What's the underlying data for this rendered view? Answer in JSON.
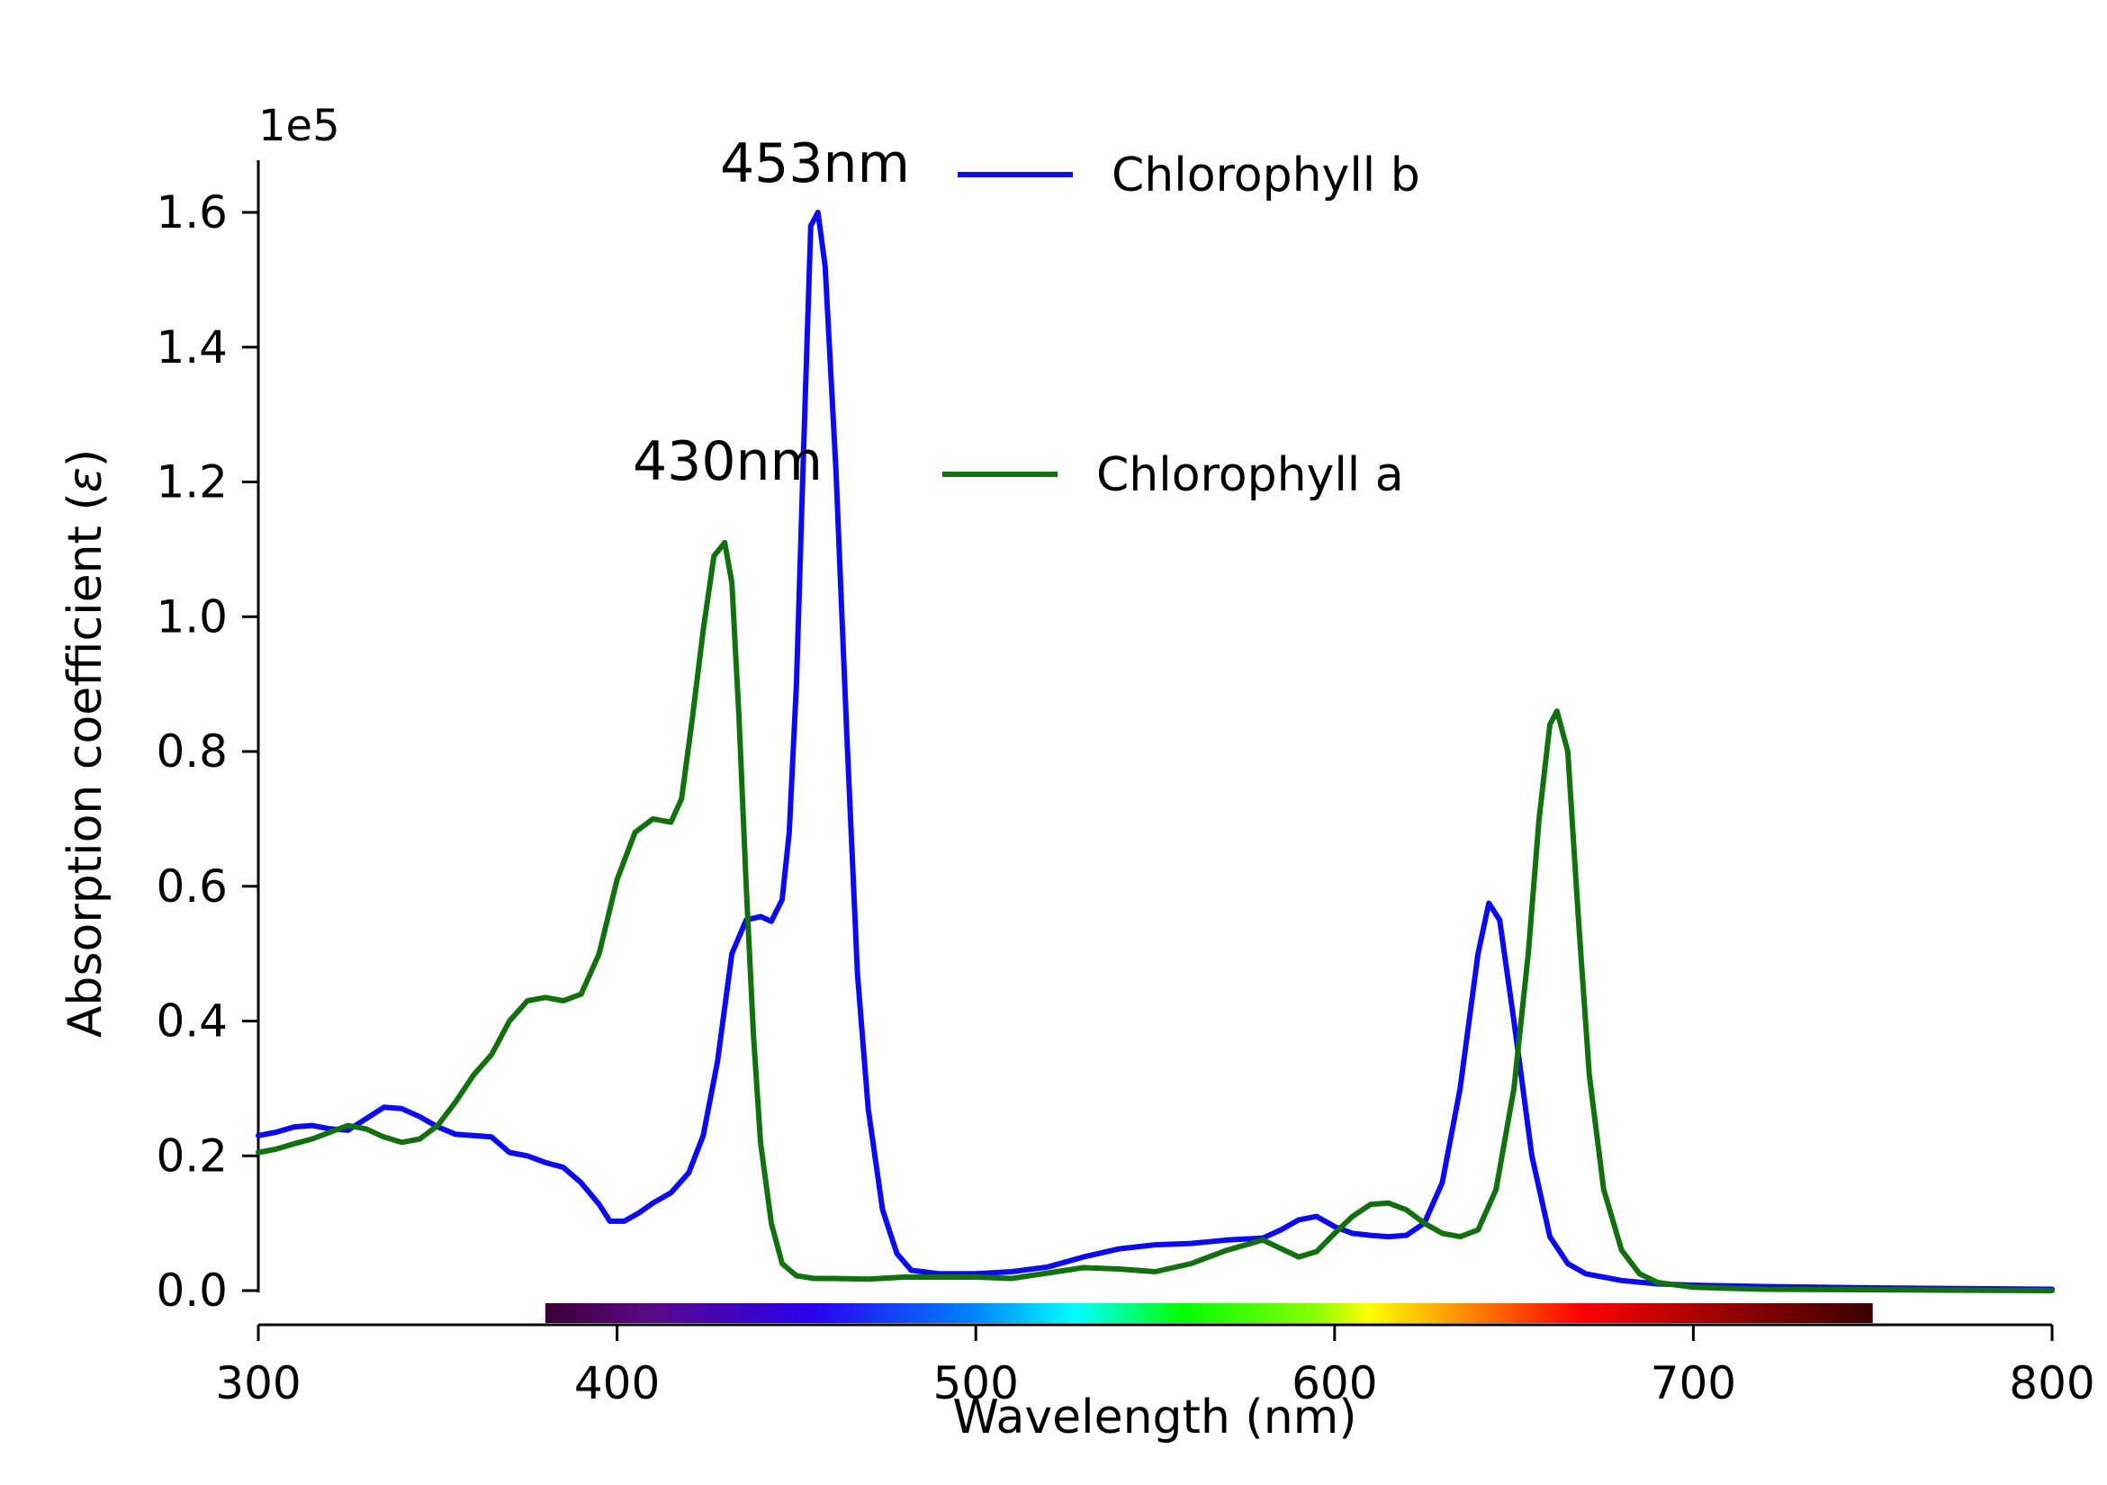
{
  "chart_data": {
    "type": "line",
    "title": "",
    "xlabel": "Wavelength (nm)",
    "ylabel": "Absorption coefficient (ε)",
    "ylabel_prefix": "Absorption coefficient (",
    "ylabel_symbol": "ε",
    "ylabel_suffix": ")",
    "y_multiplier_label": "1e5",
    "xlim": [
      300,
      800
    ],
    "ylim": [
      0,
      1.68
    ],
    "xticks": [
      300,
      400,
      500,
      600,
      700,
      800
    ],
    "xtick_labels": [
      "300",
      "400",
      "500",
      "600",
      "700",
      "800"
    ],
    "yticks": [
      0.0,
      0.2,
      0.4,
      0.6,
      0.8,
      1.0,
      1.2,
      1.4,
      1.6
    ],
    "ytick_labels": [
      "0.0",
      "0.2",
      "0.4",
      "0.6",
      "0.8",
      "1.0",
      "1.2",
      "1.4",
      "1.6"
    ],
    "grid": false,
    "legend_placement": "top-center",
    "spectrum_bar": {
      "x_range": [
        380,
        750
      ]
    },
    "annotations": [
      {
        "text": "453nm",
        "x": 453,
        "y": 1.6
      },
      {
        "text": "430nm",
        "x": 430,
        "y": 1.12
      }
    ],
    "series": [
      {
        "name": "Chlorophyll b",
        "color": "#0b0bee",
        "points": [
          [
            300,
            0.23
          ],
          [
            305,
            0.235
          ],
          [
            310,
            0.243
          ],
          [
            315,
            0.245
          ],
          [
            320,
            0.24
          ],
          [
            325,
            0.238
          ],
          [
            330,
            0.255
          ],
          [
            335,
            0.272
          ],
          [
            340,
            0.27
          ],
          [
            345,
            0.258
          ],
          [
            350,
            0.243
          ],
          [
            355,
            0.232
          ],
          [
            360,
            0.23
          ],
          [
            365,
            0.228
          ],
          [
            370,
            0.205
          ],
          [
            375,
            0.2
          ],
          [
            380,
            0.19
          ],
          [
            385,
            0.183
          ],
          [
            390,
            0.16
          ],
          [
            395,
            0.128
          ],
          [
            398,
            0.103
          ],
          [
            402,
            0.103
          ],
          [
            406,
            0.115
          ],
          [
            410,
            0.13
          ],
          [
            415,
            0.145
          ],
          [
            420,
            0.175
          ],
          [
            424,
            0.23
          ],
          [
            428,
            0.34
          ],
          [
            432,
            0.5
          ],
          [
            436,
            0.55
          ],
          [
            440,
            0.555
          ],
          [
            443,
            0.548
          ],
          [
            446,
            0.58
          ],
          [
            448,
            0.68
          ],
          [
            450,
            0.9
          ],
          [
            452,
            1.25
          ],
          [
            454,
            1.58
          ],
          [
            456,
            1.6
          ],
          [
            458,
            1.52
          ],
          [
            461,
            1.22
          ],
          [
            464,
            0.83
          ],
          [
            467,
            0.47
          ],
          [
            470,
            0.27
          ],
          [
            474,
            0.12
          ],
          [
            478,
            0.055
          ],
          [
            482,
            0.03
          ],
          [
            490,
            0.025
          ],
          [
            500,
            0.025
          ],
          [
            510,
            0.028
          ],
          [
            520,
            0.035
          ],
          [
            530,
            0.05
          ],
          [
            540,
            0.062
          ],
          [
            550,
            0.068
          ],
          [
            560,
            0.07
          ],
          [
            570,
            0.075
          ],
          [
            580,
            0.078
          ],
          [
            585,
            0.09
          ],
          [
            590,
            0.105
          ],
          [
            595,
            0.11
          ],
          [
            600,
            0.095
          ],
          [
            605,
            0.085
          ],
          [
            610,
            0.082
          ],
          [
            615,
            0.08
          ],
          [
            620,
            0.082
          ],
          [
            625,
            0.1
          ],
          [
            630,
            0.16
          ],
          [
            635,
            0.3
          ],
          [
            640,
            0.5
          ],
          [
            643,
            0.575
          ],
          [
            646,
            0.55
          ],
          [
            650,
            0.4
          ],
          [
            655,
            0.2
          ],
          [
            660,
            0.08
          ],
          [
            665,
            0.04
          ],
          [
            670,
            0.025
          ],
          [
            680,
            0.015
          ],
          [
            690,
            0.01
          ],
          [
            700,
            0.008
          ],
          [
            720,
            0.006
          ],
          [
            750,
            0.004
          ],
          [
            800,
            0.002
          ]
        ]
      },
      {
        "name": "Chlorophyll a",
        "color": "#12700f",
        "points": [
          [
            300,
            0.205
          ],
          [
            305,
            0.21
          ],
          [
            310,
            0.218
          ],
          [
            315,
            0.225
          ],
          [
            320,
            0.235
          ],
          [
            325,
            0.245
          ],
          [
            330,
            0.24
          ],
          [
            335,
            0.228
          ],
          [
            340,
            0.22
          ],
          [
            345,
            0.225
          ],
          [
            350,
            0.245
          ],
          [
            355,
            0.28
          ],
          [
            360,
            0.32
          ],
          [
            365,
            0.35
          ],
          [
            370,
            0.4
          ],
          [
            375,
            0.43
          ],
          [
            380,
            0.435
          ],
          [
            385,
            0.43
          ],
          [
            390,
            0.44
          ],
          [
            395,
            0.5
          ],
          [
            400,
            0.61
          ],
          [
            405,
            0.68
          ],
          [
            410,
            0.7
          ],
          [
            415,
            0.695
          ],
          [
            418,
            0.73
          ],
          [
            421,
            0.85
          ],
          [
            424,
            0.98
          ],
          [
            427,
            1.09
          ],
          [
            430,
            1.11
          ],
          [
            432,
            1.05
          ],
          [
            434,
            0.85
          ],
          [
            436,
            0.6
          ],
          [
            438,
            0.38
          ],
          [
            440,
            0.22
          ],
          [
            443,
            0.1
          ],
          [
            446,
            0.04
          ],
          [
            450,
            0.022
          ],
          [
            455,
            0.018
          ],
          [
            460,
            0.018
          ],
          [
            470,
            0.017
          ],
          [
            480,
            0.02
          ],
          [
            490,
            0.02
          ],
          [
            500,
            0.02
          ],
          [
            510,
            0.018
          ],
          [
            520,
            0.026
          ],
          [
            530,
            0.034
          ],
          [
            540,
            0.032
          ],
          [
            550,
            0.028
          ],
          [
            560,
            0.04
          ],
          [
            570,
            0.06
          ],
          [
            580,
            0.075
          ],
          [
            590,
            0.05
          ],
          [
            595,
            0.058
          ],
          [
            600,
            0.085
          ],
          [
            605,
            0.11
          ],
          [
            610,
            0.128
          ],
          [
            615,
            0.13
          ],
          [
            620,
            0.12
          ],
          [
            625,
            0.1
          ],
          [
            630,
            0.085
          ],
          [
            635,
            0.08
          ],
          [
            640,
            0.09
          ],
          [
            645,
            0.15
          ],
          [
            650,
            0.3
          ],
          [
            654,
            0.5
          ],
          [
            657,
            0.7
          ],
          [
            660,
            0.84
          ],
          [
            662,
            0.86
          ],
          [
            665,
            0.8
          ],
          [
            668,
            0.55
          ],
          [
            671,
            0.32
          ],
          [
            675,
            0.15
          ],
          [
            680,
            0.06
          ],
          [
            685,
            0.025
          ],
          [
            690,
            0.012
          ],
          [
            700,
            0.005
          ],
          [
            720,
            0.002
          ],
          [
            760,
            0.001
          ],
          [
            800,
            0.0
          ]
        ]
      }
    ]
  }
}
